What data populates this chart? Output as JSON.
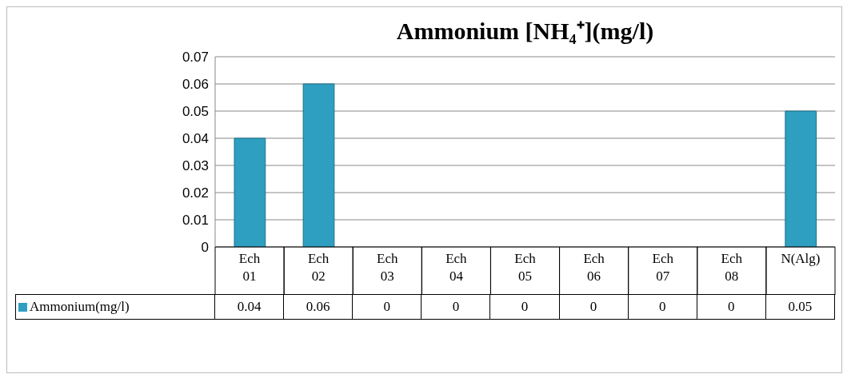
{
  "chart_data": {
    "type": "bar",
    "title": "Ammonium [NH₄⁺](mg/l)",
    "categories": [
      "Ech 01",
      "Ech 02",
      "Ech 03",
      "Ech 04",
      "Ech 05",
      "Ech 06",
      "Ech 07",
      "Ech 08",
      "N(Alg)"
    ],
    "series": [
      {
        "name": "Ammonium(mg/l)",
        "color": "#2e9fc0",
        "values": [
          0.04,
          0.06,
          0,
          0,
          0,
          0,
          0,
          0,
          0.05
        ]
      }
    ],
    "ylim": [
      0,
      0.07
    ],
    "yticks": [
      0,
      0.01,
      0.02,
      0.03,
      0.04,
      0.05,
      0.06,
      0.07
    ],
    "grid": "y",
    "legend": "bottom",
    "data_labels": true
  }
}
